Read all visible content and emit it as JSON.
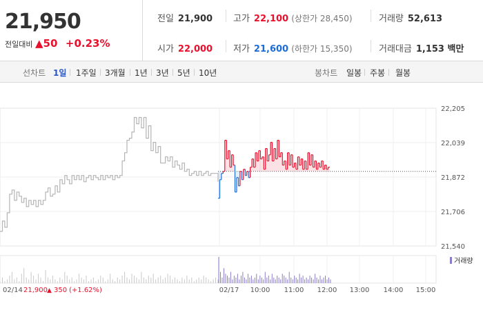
{
  "quote": {
    "price": "21,950",
    "change_label": "전일대비",
    "change_arrow": "▲",
    "change_value": "50",
    "change_pct": "+0.23%"
  },
  "stats": {
    "prev_close": {
      "label": "전일",
      "value": "21,900"
    },
    "open": {
      "label": "시가",
      "value": "22,000"
    },
    "high": {
      "label": "고가",
      "value": "22,100",
      "sub": "(상한가 28,450)"
    },
    "low": {
      "label": "저가",
      "value": "21,600",
      "sub": "(하한가 15,350)"
    },
    "volume": {
      "label": "거래량",
      "value": "52,613"
    },
    "amount": {
      "label": "거래대금",
      "value": "1,153 백만"
    }
  },
  "tabs": {
    "line_label": "선차트",
    "line_items": [
      "1일",
      "1주일",
      "3개월",
      "1년",
      "3년",
      "5년",
      "10년"
    ],
    "active_line": "1일",
    "candle_label": "봉차트",
    "candle_items": [
      "일봉",
      "주봉",
      "월봉"
    ]
  },
  "colors": {
    "up": "#e8112d",
    "down": "#1e6cd6",
    "prev": "#b4b4b4",
    "accent": "#2a56c6"
  },
  "chart_data": {
    "type": "line",
    "ylim": [
      21540,
      22205
    ],
    "y_ticks": [
      "22,205",
      "22,039",
      "21,872",
      "21,706",
      "21,540"
    ],
    "x_ticks": [
      "02/14",
      "02/17",
      "10:00",
      "11:00",
      "12:00",
      "13:00",
      "14:00",
      "15:00"
    ],
    "reference_price": 21900,
    "legend": "거래량",
    "footer": {
      "date": "02/14",
      "price": "21,900",
      "arrow": "▲",
      "change": "350",
      "pct": "(+1.62%)"
    },
    "series": [
      {
        "values": [
          21610,
          21660,
          21630,
          21700,
          21790,
          21810,
          21760,
          21800,
          21780,
          21750,
          21770,
          21730,
          21760,
          21740,
          21760,
          21730,
          21760,
          21740,
          21760,
          21800,
          21820,
          21780,
          21790,
          21830,
          21800,
          21860,
          21840,
          21880,
          21860,
          21840,
          21880,
          21860,
          21880,
          21860,
          21880,
          21850,
          21870,
          21880,
          21860,
          21880,
          21870,
          21860,
          21880,
          21860,
          21880,
          21870,
          21880,
          21860,
          21880,
          21870,
          21880,
          21950,
          21990,
          22050,
          22060,
          22090,
          22160,
          22130,
          22160,
          22110,
          22160,
          22060,
          22120,
          22000,
          22040,
          21990,
          22020,
          21940,
          21940,
          21970,
          21950,
          21970,
          21920,
          21950,
          21930,
          21910,
          21940,
          21900,
          21910,
          21880,
          21890,
          21900,
          21880,
          21900,
          21880,
          21890,
          21900,
          21880,
          21890,
          21890,
          21890,
          21850
        ]
      },
      {
        "values": [
          21770,
          21860,
          21890,
          21900,
          22050,
          21960,
          22000,
          21920,
          21980,
          21930,
          21800,
          21870,
          21830,
          21900,
          21860,
          21910,
          21880,
          21900,
          21870,
          21920,
          21960,
          21920,
          21990,
          21950,
          22000,
          21960,
          21970,
          21910,
          22010,
          21950,
          21980,
          22040,
          21950,
          22010,
          21960,
          22050,
          21970,
          21990,
          21930,
          21950,
          21910,
          21990,
          21930,
          21980,
          21920,
          21940,
          21910,
          21970,
          21930,
          21960,
          21910,
          21950,
          21910,
          21990,
          21930,
          21980,
          21920,
          21950,
          21910,
          21940,
          21920,
          21950,
          21910,
          21930,
          21910,
          21920,
          21920
        ]
      },
      {
        "values": [
          1,
          3,
          1,
          2,
          4,
          6,
          2,
          3,
          1,
          5,
          8,
          3,
          2,
          6,
          4,
          2,
          5,
          3,
          1,
          7,
          3,
          2,
          4,
          2,
          1,
          3,
          2,
          6,
          4,
          2,
          3,
          1,
          2,
          5,
          3,
          2,
          4,
          1,
          2,
          3,
          1,
          2,
          4,
          3,
          1,
          2,
          5,
          2,
          1,
          3,
          2,
          4,
          6,
          3,
          2,
          5,
          4,
          3,
          2,
          6,
          3,
          2,
          4,
          3,
          5,
          2,
          3,
          4,
          2,
          3,
          5,
          4,
          2,
          3,
          2,
          1,
          3,
          2,
          4,
          2,
          3,
          1,
          2,
          3,
          2,
          4,
          3,
          2,
          1,
          2,
          3,
          2
        ]
      },
      {
        "values": [
          14,
          6,
          3,
          8,
          5,
          4,
          3,
          6,
          2,
          4,
          3,
          5,
          2,
          4,
          6,
          3,
          2,
          5,
          3,
          4,
          2,
          3,
          5,
          2,
          4,
          3,
          2,
          6,
          3,
          4,
          2,
          5,
          3,
          2,
          4,
          3,
          2,
          5,
          4,
          3,
          2,
          6,
          3,
          2,
          4,
          3,
          2,
          5,
          3,
          4,
          2,
          3,
          2,
          4,
          3,
          2,
          5,
          3,
          2,
          4,
          2,
          3,
          4,
          2,
          3,
          2
        ]
      }
    ]
  }
}
